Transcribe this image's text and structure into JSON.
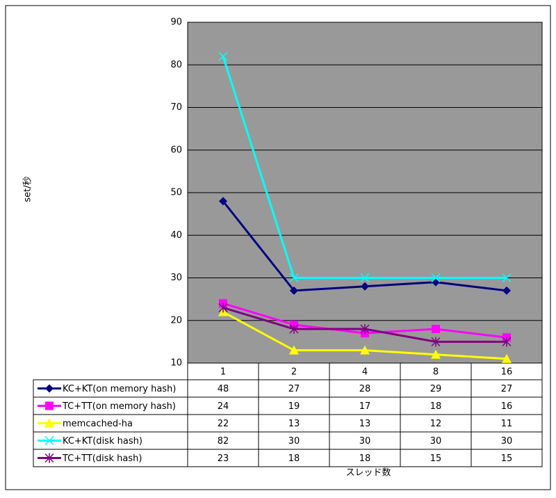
{
  "chart_data": {
    "type": "line",
    "x_label": "スレッド数",
    "y_label": "set/秒",
    "categories": [
      "1",
      "2",
      "4",
      "8",
      "16"
    ],
    "ylim": [
      10,
      90
    ],
    "yticks": [
      10,
      20,
      30,
      40,
      50,
      60,
      70,
      80,
      90
    ],
    "grid": true,
    "plot_background": "#999999",
    "series": [
      {
        "name": "KC+KT(on memory hash)",
        "color": "#000080",
        "marker": "diamond",
        "values": [
          48,
          27,
          28,
          29,
          27
        ]
      },
      {
        "name": "TC+TT(on memory hash)",
        "color": "#ff00ff",
        "marker": "square",
        "values": [
          24,
          19,
          17,
          18,
          16
        ]
      },
      {
        "name": "memcached-ha",
        "color": "#ffff00",
        "marker": "triangle",
        "values": [
          22,
          13,
          13,
          12,
          11
        ]
      },
      {
        "name": "KC+KT(disk hash)",
        "color": "#00ffff",
        "marker": "x",
        "values": [
          82,
          30,
          30,
          30,
          30
        ]
      },
      {
        "name": "TC+TT(disk hash)",
        "color": "#800080",
        "marker": "star",
        "values": [
          23,
          18,
          18,
          15,
          15
        ]
      }
    ]
  }
}
